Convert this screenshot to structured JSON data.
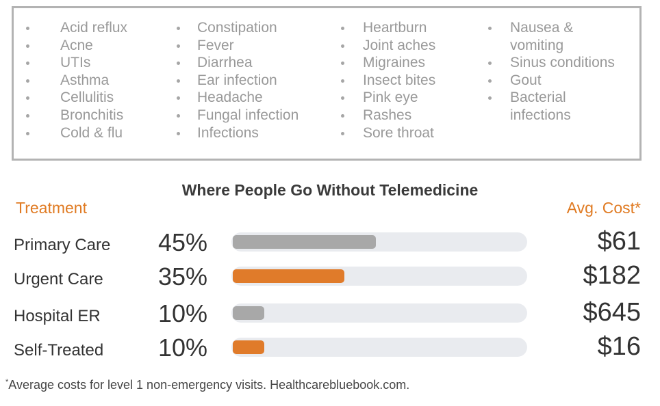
{
  "conditions": {
    "columns": [
      [
        "Acid reflux",
        "Acne",
        "UTIs",
        "Asthma",
        "Cellulitis",
        "Bronchitis",
        "Cold & flu"
      ],
      [
        "Constipation",
        "Fever",
        "Diarrhea",
        "Ear infection",
        "Headache",
        "Fungal infection",
        "Infections"
      ],
      [
        "Heartburn",
        "Joint aches",
        "Migraines",
        "Insect bites",
        "Pink eye",
        "Rashes",
        "Sore throat"
      ],
      [
        "Nausea &\nvomiting",
        "Sinus conditions",
        "Gout",
        "Bacterial\ninfections"
      ]
    ]
  },
  "chart_data": {
    "type": "bar",
    "title": "Where People Go Without Telemedicine",
    "column_headers": {
      "treatment": "Treatment",
      "cost": "Avg. Cost*"
    },
    "categories": [
      "Primary Care",
      "Urgent Care",
      "Hospital ER",
      "Self-Treated"
    ],
    "values": [
      45,
      35,
      10,
      10
    ],
    "value_labels": [
      "45%",
      "35%",
      "10%",
      "10%"
    ],
    "costs": [
      "$61",
      "$182",
      "$645",
      "$16"
    ],
    "bar_colors": [
      "#a8a8a8",
      "#e07b2a",
      "#a8a8a8",
      "#e07b2a"
    ],
    "track_color": "#e9ebef",
    "xlim": [
      0,
      100
    ]
  },
  "footnote": {
    "marker": "*",
    "text": "Average costs for level 1 non-emergency visits. Healthcarebluebook.com."
  }
}
